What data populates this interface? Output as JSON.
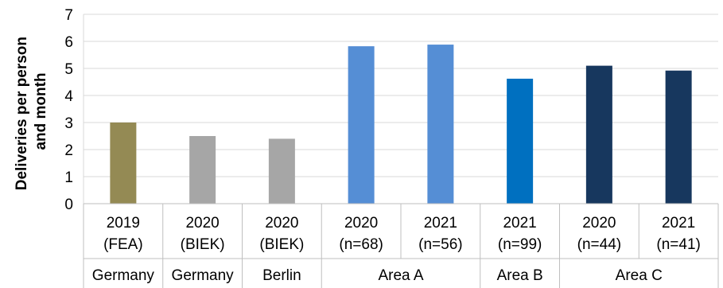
{
  "chart_data": {
    "type": "bar",
    "ylabel": [
      "Deliveries per person",
      "and month"
    ],
    "ylim": [
      0,
      7
    ],
    "yticks": [
      "0",
      "1",
      "2",
      "3",
      "4",
      "5",
      "6",
      "7"
    ],
    "grid": true,
    "bars": [
      {
        "year": "2019",
        "label": "(FEA)",
        "value": 3.0,
        "color": "#948A54"
      },
      {
        "year": "2020",
        "label": "(BIEK)",
        "value": 2.5,
        "color": "#A6A6A6"
      },
      {
        "year": "2020",
        "label": "(BIEK)",
        "value": 2.4,
        "color": "#A6A6A6"
      },
      {
        "year": "2020",
        "label": "(n=68)",
        "value": 5.82,
        "color": "#558ED5"
      },
      {
        "year": "2021",
        "label": "(n=56)",
        "value": 5.88,
        "color": "#558ED5"
      },
      {
        "year": "2021",
        "label": "(n=99)",
        "value": 4.62,
        "color": "#0070C0"
      },
      {
        "year": "2020",
        "label": "(n=44)",
        "value": 5.1,
        "color": "#17375E"
      },
      {
        "year": "2021",
        "label": "(n=41)",
        "value": 4.92,
        "color": "#17375E"
      }
    ],
    "groups": [
      {
        "name": "Germany",
        "count": 1
      },
      {
        "name": "Germany",
        "count": 1
      },
      {
        "name": "Berlin",
        "count": 1
      },
      {
        "name": "Area A",
        "count": 2
      },
      {
        "name": "Area B",
        "count": 1
      },
      {
        "name": "Area C",
        "count": 2
      }
    ]
  }
}
